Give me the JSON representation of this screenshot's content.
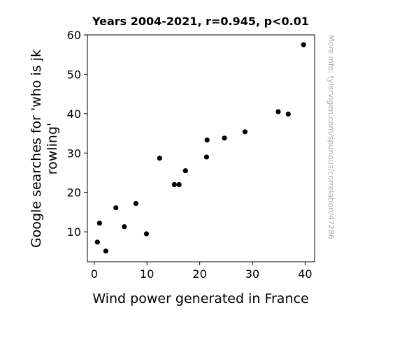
{
  "chart_data": {
    "type": "scatter",
    "title": "Years 2004-2021, r=0.945, p<0.01",
    "xlabel": "Wind power generated in France",
    "ylabel_lines": [
      "Google searches for 'who is jk",
      "rowling'"
    ],
    "watermark": "More info: tylervigen.com/spurious/correlation/47286",
    "xlim": [
      -1.3,
      41.8
    ],
    "ylim": [
      2.4,
      60
    ],
    "xticks": [
      "0",
      "10",
      "20",
      "30",
      "40"
    ],
    "yticks": [
      "10",
      "20",
      "30",
      "40",
      "50",
      "60"
    ],
    "grid": false,
    "point_color": "#000000",
    "points": [
      {
        "x": 0.6,
        "y": 7.4
      },
      {
        "x": 1.0,
        "y": 12.2
      },
      {
        "x": 2.2,
        "y": 5.1
      },
      {
        "x": 4.1,
        "y": 16.1
      },
      {
        "x": 5.7,
        "y": 11.3
      },
      {
        "x": 7.9,
        "y": 17.2
      },
      {
        "x": 9.9,
        "y": 9.5
      },
      {
        "x": 12.4,
        "y": 28.7
      },
      {
        "x": 15.2,
        "y": 22.0
      },
      {
        "x": 16.1,
        "y": 22.0
      },
      {
        "x": 17.3,
        "y": 25.5
      },
      {
        "x": 21.3,
        "y": 29.0
      },
      {
        "x": 21.4,
        "y": 33.3
      },
      {
        "x": 24.7,
        "y": 33.8
      },
      {
        "x": 28.6,
        "y": 35.4
      },
      {
        "x": 34.9,
        "y": 40.5
      },
      {
        "x": 36.8,
        "y": 39.9
      },
      {
        "x": 39.7,
        "y": 57.5
      }
    ]
  }
}
